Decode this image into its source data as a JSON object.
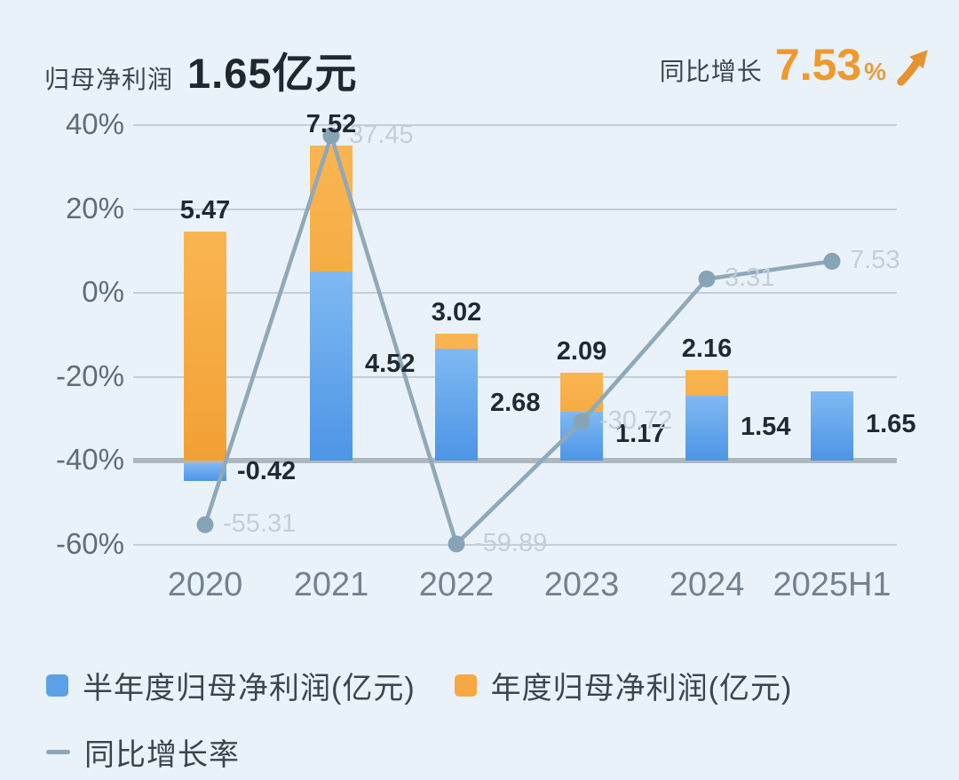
{
  "header": {
    "left_label": "归母净利润",
    "left_value": "1.65亿元",
    "right_label": "同比增长",
    "right_value": "7.53",
    "right_unit": "%",
    "arrow_icon": "up-right-swoosh-arrow",
    "accent_orange": "#F0992B"
  },
  "chart_data": {
    "type": "bar",
    "subtype": "stacked-bar-with-line-combo",
    "categories": [
      "2020",
      "2021",
      "2022",
      "2023",
      "2024",
      "2025H1"
    ],
    "series": [
      {
        "name": "半年度归母净利润(亿元)",
        "type": "bar",
        "color": "#5CA0E8",
        "values": [
          -0.42,
          4.52,
          2.68,
          1.17,
          1.54,
          1.65
        ]
      },
      {
        "name": "年度归母净利润(亿元)",
        "type": "bar",
        "color": "#F6A843",
        "values": [
          5.47,
          7.52,
          3.02,
          2.09,
          2.16,
          null
        ]
      },
      {
        "name": "同比增长率",
        "type": "line",
        "unit": "%",
        "color": "#8FA9B9",
        "values": [
          -55.31,
          37.45,
          -59.89,
          -30.72,
          3.31,
          7.53
        ]
      }
    ],
    "y_axis": {
      "ticks": [
        "40%",
        "20%",
        "0%",
        "-20%",
        "-40%",
        "-60%"
      ],
      "tick_values": [
        40,
        20,
        0,
        -20,
        -40,
        -60
      ],
      "bar_baseline_tick": -40
    },
    "grid": true,
    "legend_position": "bottom",
    "title": "归母净利润 1.65亿元",
    "annotation": "同比增长 7.53%"
  },
  "legend": {
    "items": [
      {
        "label": "半年度归母净利润(亿元)",
        "swatch": "blue-square",
        "color": "#5CA0E8"
      },
      {
        "label": "年度归母净利润(亿元)",
        "swatch": "orange-square",
        "color": "#F6A843"
      },
      {
        "label": "同比增长率",
        "swatch": "gray-dash",
        "color": "#8FA9B9"
      }
    ]
  },
  "colors": {
    "background": "#EAF2F9",
    "dark_text": "#1F2933",
    "axis_text": "#5E6E78",
    "grid_line": "#C4CED5",
    "baseline_line": "#ACB7BE",
    "gray_value_label": "#C2CED9"
  }
}
